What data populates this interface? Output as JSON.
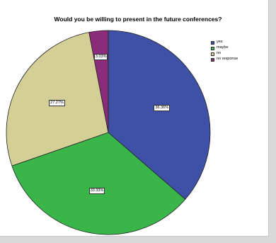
{
  "chart_data": {
    "type": "pie",
    "title": "Would you be willing to present in the future conferences?",
    "slices": [
      {
        "name": "yes",
        "value": 36.36,
        "label": "36.36%",
        "color": "#3f51a6"
      },
      {
        "name": "maybe",
        "value": 33.33,
        "label": "33.33%",
        "color": "#3ab54a"
      },
      {
        "name": "no",
        "value": 27.27,
        "label": "27.27%",
        "color": "#d4cf97"
      },
      {
        "name": "no response",
        "value": 3.03,
        "label": "3.03%",
        "color": "#8a2c7a"
      }
    ],
    "legend_placement": "top-right",
    "start": "top",
    "direction": "clockwise"
  }
}
